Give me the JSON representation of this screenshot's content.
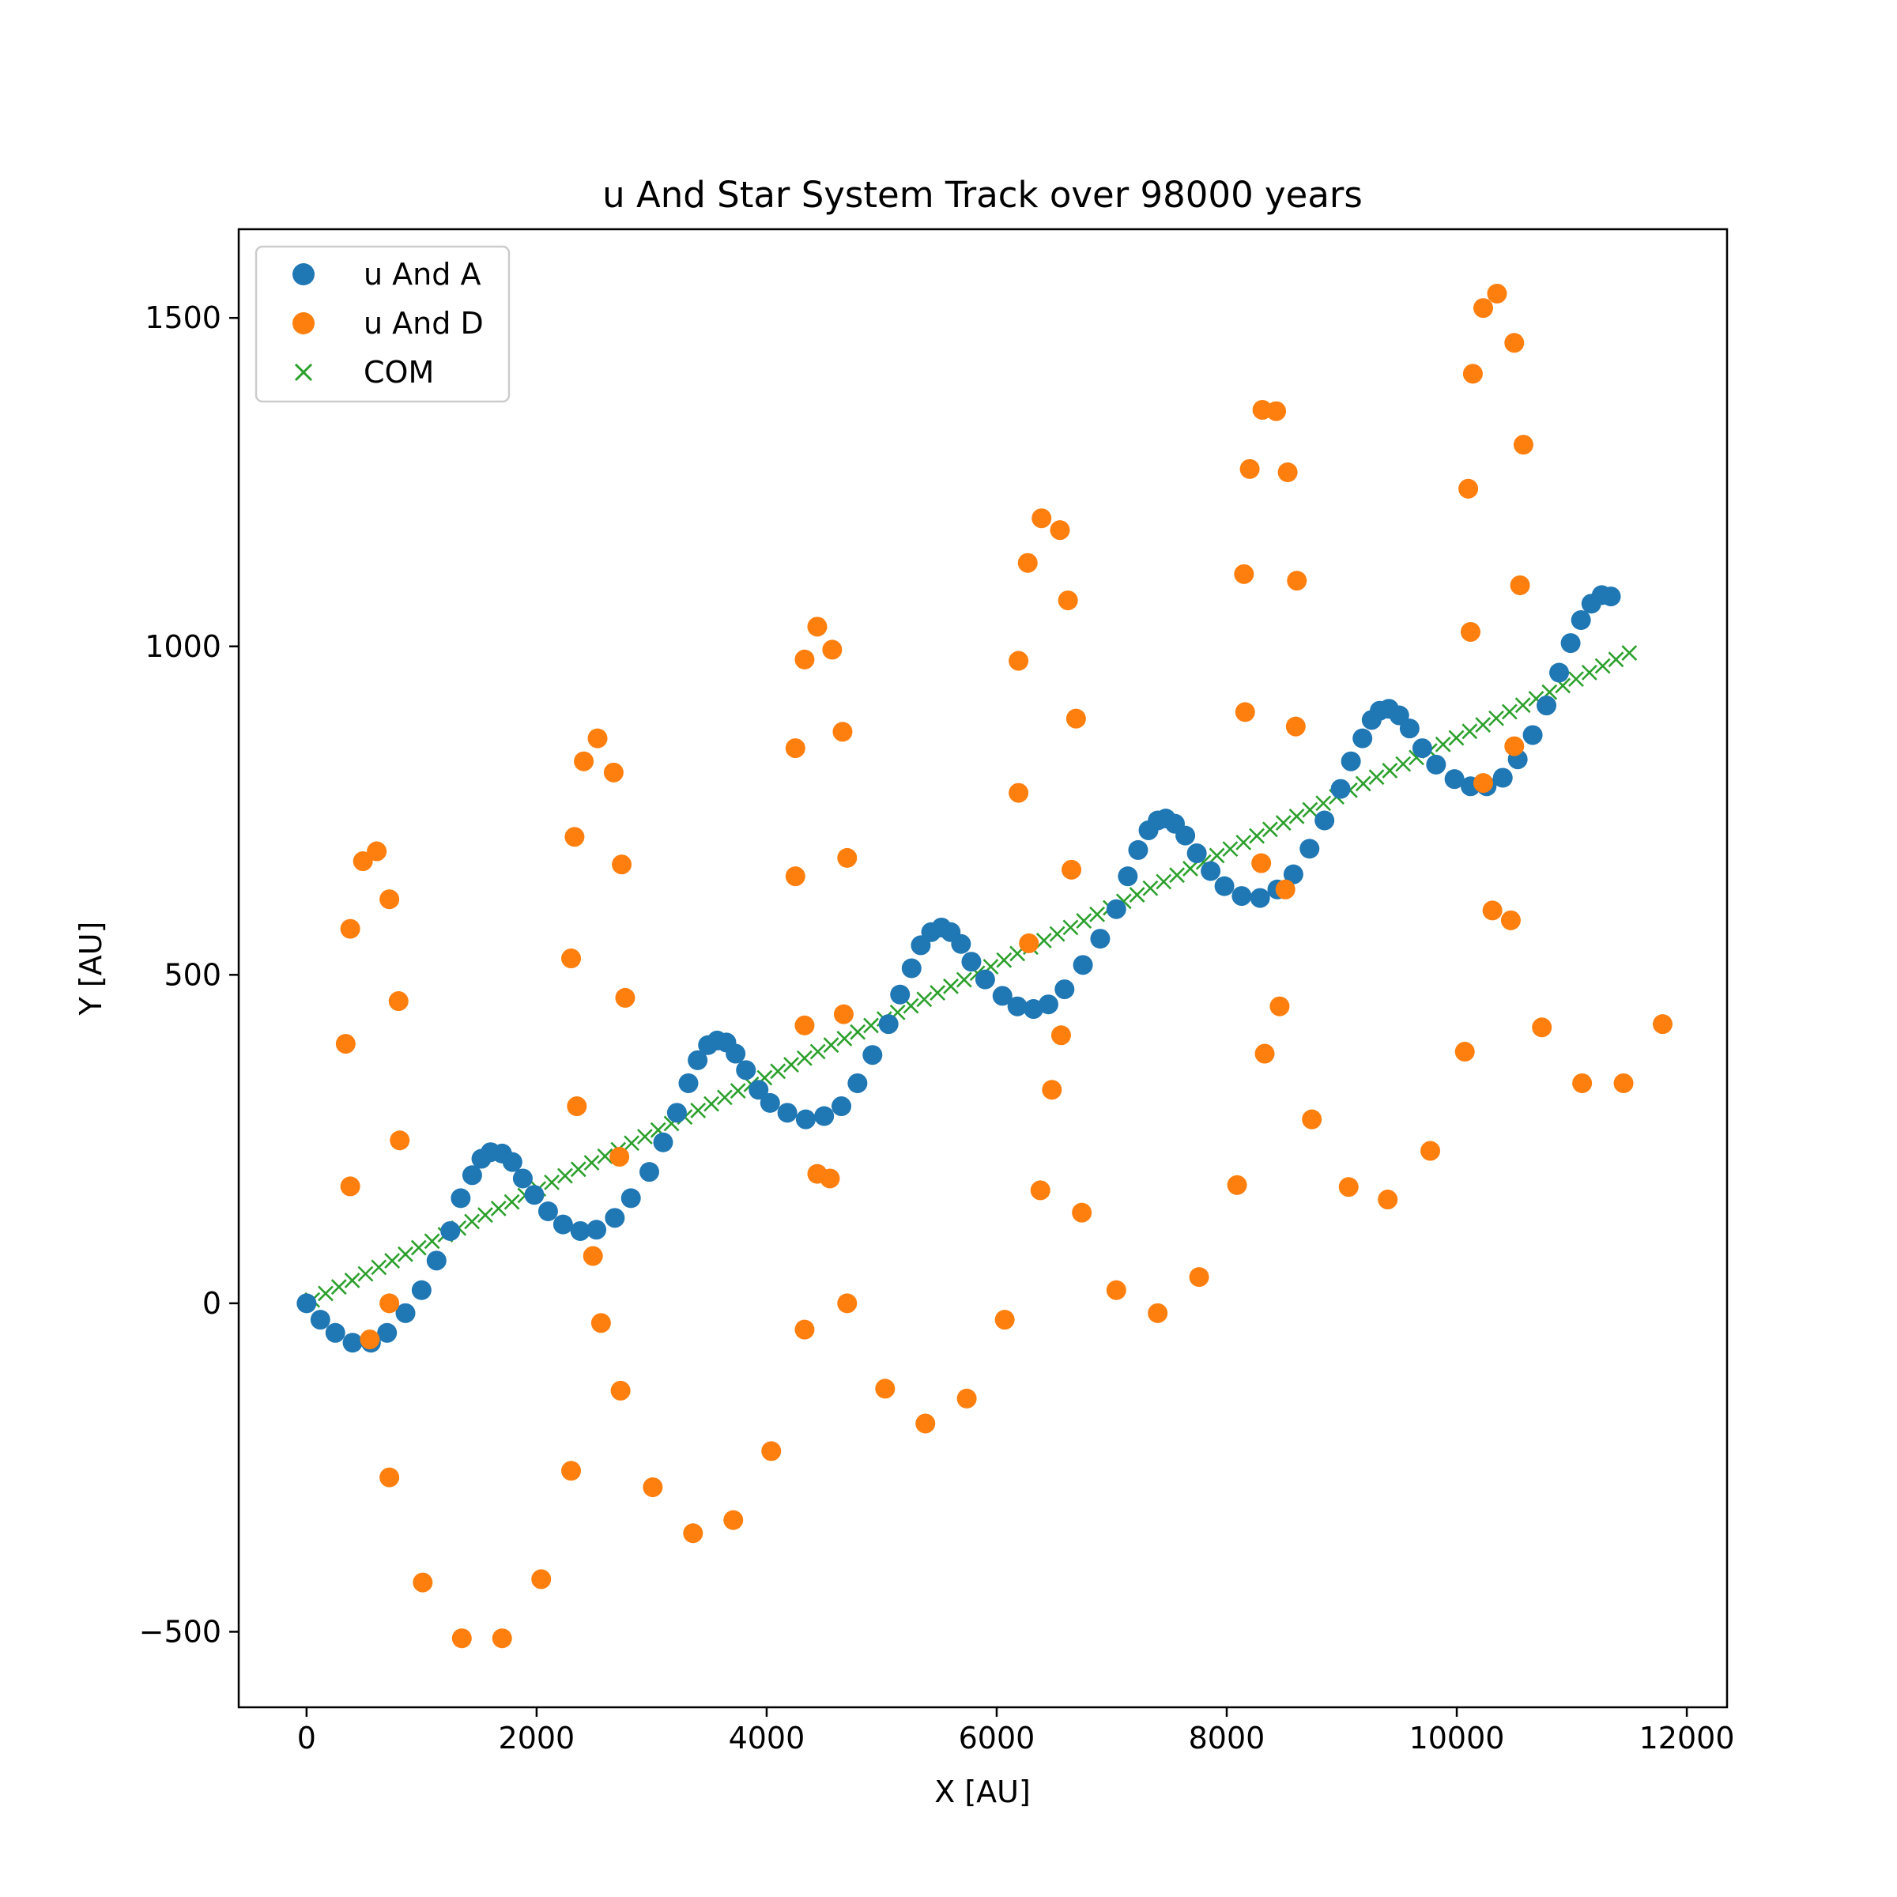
{
  "chart_data": {
    "type": "scatter",
    "title": "u And Star System Track over 98000 years",
    "xlabel": "X [AU]",
    "ylabel": "Y [AU]",
    "xlim": [
      -590,
      12350
    ],
    "ylim": [
      -615,
      1635
    ],
    "xticks": [
      0,
      2000,
      4000,
      6000,
      8000,
      10000,
      12000
    ],
    "yticks": [
      -500,
      0,
      500,
      1000,
      1500
    ],
    "ytick_labels": [
      "−500",
      "0",
      "500",
      "1000",
      "1500"
    ],
    "grid": false,
    "legend": "top-left",
    "series": [
      {
        "name": "u And A",
        "marker": "circle",
        "color": "#1f77b4",
        "points": [
          [
            0,
            0
          ],
          [
            120,
            -25
          ],
          [
            250,
            -45
          ],
          [
            400,
            -60
          ],
          [
            560,
            -60
          ],
          [
            700,
            -45
          ],
          [
            860,
            -15
          ],
          [
            1000,
            20
          ],
          [
            1130,
            65
          ],
          [
            1250,
            110
          ],
          [
            1340,
            160
          ],
          [
            1440,
            195
          ],
          [
            1520,
            220
          ],
          [
            1600,
            230
          ],
          [
            1700,
            228
          ],
          [
            1790,
            215
          ],
          [
            1880,
            190
          ],
          [
            1980,
            165
          ],
          [
            2100,
            140
          ],
          [
            2230,
            120
          ],
          [
            2380,
            110
          ],
          [
            2520,
            112
          ],
          [
            2680,
            130
          ],
          [
            2820,
            160
          ],
          [
            2980,
            200
          ],
          [
            3100,
            245
          ],
          [
            3220,
            290
          ],
          [
            3320,
            335
          ],
          [
            3400,
            370
          ],
          [
            3490,
            393
          ],
          [
            3570,
            400
          ],
          [
            3650,
            397
          ],
          [
            3730,
            380
          ],
          [
            3820,
            355
          ],
          [
            3930,
            325
          ],
          [
            4030,
            305
          ],
          [
            4180,
            290
          ],
          [
            4340,
            280
          ],
          [
            4500,
            285
          ],
          [
            4650,
            300
          ],
          [
            4790,
            335
          ],
          [
            4920,
            378
          ],
          [
            5060,
            425
          ],
          [
            5160,
            470
          ],
          [
            5260,
            510
          ],
          [
            5340,
            545
          ],
          [
            5430,
            565
          ],
          [
            5520,
            572
          ],
          [
            5600,
            565
          ],
          [
            5690,
            547
          ],
          [
            5780,
            520
          ],
          [
            5900,
            493
          ],
          [
            6050,
            468
          ],
          [
            6180,
            452
          ],
          [
            6320,
            448
          ],
          [
            6450,
            455
          ],
          [
            6590,
            478
          ],
          [
            6750,
            515
          ],
          [
            6900,
            555
          ],
          [
            7040,
            600
          ],
          [
            7140,
            650
          ],
          [
            7230,
            690
          ],
          [
            7320,
            720
          ],
          [
            7400,
            735
          ],
          [
            7470,
            738
          ],
          [
            7550,
            730
          ],
          [
            7640,
            712
          ],
          [
            7740,
            685
          ],
          [
            7860,
            658
          ],
          [
            7980,
            635
          ],
          [
            8130,
            620
          ],
          [
            8290,
            617
          ],
          [
            8440,
            630
          ],
          [
            8580,
            653
          ],
          [
            8720,
            692
          ],
          [
            8850,
            735
          ],
          [
            8990,
            783
          ],
          [
            9080,
            825
          ],
          [
            9180,
            860
          ],
          [
            9260,
            888
          ],
          [
            9330,
            902
          ],
          [
            9410,
            905
          ],
          [
            9500,
            895
          ],
          [
            9590,
            875
          ],
          [
            9700,
            845
          ],
          [
            9820,
            820
          ],
          [
            9980,
            798
          ],
          [
            10120,
            787
          ],
          [
            10260,
            787
          ],
          [
            10400,
            800
          ],
          [
            10530,
            828
          ],
          [
            10660,
            865
          ],
          [
            10780,
            910
          ],
          [
            10890,
            960
          ],
          [
            10990,
            1005
          ],
          [
            11080,
            1040
          ],
          [
            11170,
            1065
          ],
          [
            11260,
            1078
          ],
          [
            11340,
            1076
          ]
        ]
      },
      {
        "name": "u And D",
        "marker": "circle",
        "color": "#ff7f0e",
        "points": [
          [
            340,
            395
          ],
          [
            380,
            570
          ],
          [
            490,
            673
          ],
          [
            610,
            688
          ],
          [
            720,
            615
          ],
          [
            800,
            460
          ],
          [
            810,
            248
          ],
          [
            720,
            0
          ],
          [
            550,
            -55
          ],
          [
            380,
            178
          ],
          [
            720,
            -265
          ],
          [
            1010,
            -425
          ],
          [
            1350,
            -510
          ],
          [
            1700,
            -510
          ],
          [
            2040,
            -420
          ],
          [
            2300,
            -255
          ],
          [
            2350,
            300
          ],
          [
            2300,
            525
          ],
          [
            2330,
            710
          ],
          [
            2410,
            825
          ],
          [
            2530,
            860
          ],
          [
            2670,
            808
          ],
          [
            2740,
            668
          ],
          [
            2770,
            465
          ],
          [
            2720,
            223
          ],
          [
            2560,
            -30
          ],
          [
            2490,
            72
          ],
          [
            2730,
            -133
          ],
          [
            3010,
            -280
          ],
          [
            3360,
            -350
          ],
          [
            3710,
            -330
          ],
          [
            4040,
            -225
          ],
          [
            4330,
            -40
          ],
          [
            4330,
            423
          ],
          [
            4250,
            650
          ],
          [
            4250,
            845
          ],
          [
            4330,
            980
          ],
          [
            4440,
            1030
          ],
          [
            4570,
            995
          ],
          [
            4660,
            870
          ],
          [
            4700,
            678
          ],
          [
            4670,
            440
          ],
          [
            4700,
            0
          ],
          [
            4550,
            190
          ],
          [
            4440,
            197
          ],
          [
            5030,
            -130
          ],
          [
            5380,
            -183
          ],
          [
            5740,
            -145
          ],
          [
            6070,
            -25
          ],
          [
            6280,
            548
          ],
          [
            6380,
            172
          ],
          [
            6480,
            325
          ],
          [
            6560,
            408
          ],
          [
            6650,
            660
          ],
          [
            6690,
            890
          ],
          [
            6620,
            1070
          ],
          [
            6550,
            1177
          ],
          [
            6390,
            1195
          ],
          [
            6270,
            1127
          ],
          [
            6190,
            978
          ],
          [
            6190,
            777
          ],
          [
            6740,
            138
          ],
          [
            7040,
            20
          ],
          [
            7400,
            -15
          ],
          [
            7760,
            40
          ],
          [
            8090,
            180
          ],
          [
            8330,
            380
          ],
          [
            8460,
            452
          ],
          [
            8510,
            630
          ],
          [
            8300,
            670
          ],
          [
            8160,
            900
          ],
          [
            8150,
            1110
          ],
          [
            8200,
            1270
          ],
          [
            8310,
            1360
          ],
          [
            8430,
            1358
          ],
          [
            8530,
            1265
          ],
          [
            8610,
            1100
          ],
          [
            8600,
            878
          ],
          [
            8740,
            280
          ],
          [
            9060,
            177
          ],
          [
            9400,
            158
          ],
          [
            9770,
            232
          ],
          [
            10070,
            383
          ],
          [
            10230,
            792
          ],
          [
            10310,
            598
          ],
          [
            10470,
            583
          ],
          [
            10500,
            848
          ],
          [
            10550,
            1093
          ],
          [
            10580,
            1307
          ],
          [
            10500,
            1462
          ],
          [
            10350,
            1537
          ],
          [
            10230,
            1515
          ],
          [
            10140,
            1415
          ],
          [
            10100,
            1240
          ],
          [
            10120,
            1022
          ],
          [
            10740,
            420
          ],
          [
            11090,
            335
          ],
          [
            11450,
            335
          ],
          [
            11790,
            425
          ]
        ]
      },
      {
        "name": "COM",
        "marker": "x",
        "color": "#2ca02c",
        "x_start": 50,
        "x_end": 11500,
        "y_start": 5,
        "y_end": 990,
        "count": 100
      }
    ]
  }
}
